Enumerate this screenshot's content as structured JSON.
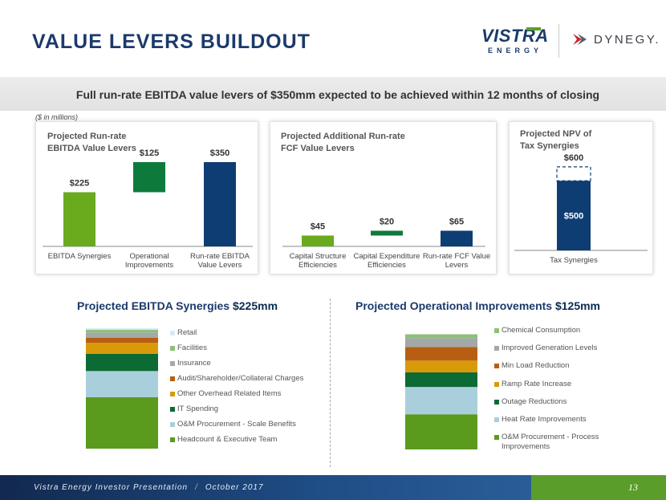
{
  "page": {
    "title": "VALUE LEVERS BUILDOUT",
    "banner": "Full run-rate EBITDA value levers of $350mm expected to be achieved within 12 months of closing",
    "units": "($ in millions)",
    "logos": {
      "vistra_word": "VISTRA",
      "vistra_sub": "ENERGY",
      "dynegy": "DYNEGY."
    },
    "footer": {
      "presentation": "Vistra Energy Investor Presentation",
      "date": "October 2017",
      "page_number": "13"
    },
    "section_titles": {
      "left_label": "Projected EBITDA Synergies ",
      "left_amount": "$225mm",
      "right_label": "Projected Operational Improvements ",
      "right_amount": "$125mm"
    }
  },
  "colors": {
    "light_green": "#6aaa1f",
    "dark_green": "#0d7a3b",
    "navy": "#0d3d73",
    "footer_green": "#5a9d2a"
  },
  "chart_data": [
    {
      "id": "ebitda",
      "type": "waterfall",
      "title_lines": [
        "Projected Run-rate",
        "EBITDA Value Levers"
      ],
      "categories": [
        "EBITDA Synergies",
        "Operational Improvements",
        "Run-rate EBITDA Value Levers"
      ],
      "category_lines": [
        [
          "EBITDA Synergies"
        ],
        [
          "Operational",
          "Improvements"
        ],
        [
          "Run-rate EBITDA",
          "Value Levers"
        ]
      ],
      "values": [
        225,
        125,
        350
      ],
      "labels": [
        "$225",
        "$125",
        "$350"
      ],
      "bases": [
        0,
        225,
        0
      ],
      "colors": [
        "#6aaa1f",
        "#0d7a3b",
        "#0d3d73"
      ],
      "ymax": 420
    },
    {
      "id": "fcf",
      "type": "bar",
      "title_lines": [
        "Projected Additional Run-rate",
        "FCF Value Levers"
      ],
      "categories": [
        "Capital Structure Efficiencies",
        "Capital Expenditure Efficiencies",
        "Run-rate FCF Value Levers"
      ],
      "category_lines": [
        [
          "Capital Structure",
          "Efficiencies"
        ],
        [
          "Capital Expenditure",
          "Efficiencies"
        ],
        [
          "Run-rate FCF Value",
          "Levers"
        ]
      ],
      "values": [
        45,
        20,
        65
      ],
      "labels": [
        "$45",
        "$20",
        "$65"
      ],
      "bases": [
        0,
        45,
        0
      ],
      "colors": [
        "#6aaa1f",
        "#0d7a3b",
        "#0d3d73"
      ],
      "ymax": 420
    },
    {
      "id": "npv",
      "type": "bar",
      "title_lines": [
        "Projected NPV of",
        "Tax Synergies"
      ],
      "categories": [
        "Tax Synergies"
      ],
      "values": [
        500
      ],
      "upside_total": 600,
      "labels": [
        "$500"
      ],
      "upside_label": "$600",
      "colors": [
        "#0d3d73"
      ],
      "ymax": 680
    },
    {
      "id": "synergies",
      "type": "stacked-bar",
      "total": 225,
      "segments": [
        {
          "name": "Headcount & Executive Team",
          "value": 96,
          "color": "#5a9a1c"
        },
        {
          "name": "O&M Procurement - Scale Benefits",
          "value": 49,
          "color": "#a9cfdc"
        },
        {
          "name": "IT Spending",
          "value": 32,
          "color": "#0c6a34"
        },
        {
          "name": "Other Overhead Related Items",
          "value": 21,
          "color": "#d99a0a"
        },
        {
          "name": "Audit/Shareholder/Collateral Charges",
          "value": 9,
          "color": "#b85e12"
        },
        {
          "name": "Insurance",
          "value": 10,
          "color": "#a3a8a9"
        },
        {
          "name": "Facilities",
          "value": 5,
          "color": "#8cc07a"
        },
        {
          "name": "Retail",
          "value": 3,
          "color": "#d9e9f2"
        }
      ],
      "legend_order": [
        "Retail",
        "Facilities",
        "Insurance",
        "Audit/Shareholder/Collateral Charges",
        "Other Overhead Related Items",
        "IT Spending",
        "O&M Procurement - Scale Benefits",
        "Headcount & Executive Team"
      ]
    },
    {
      "id": "operational",
      "type": "stacked-bar",
      "total": 125,
      "segments": [
        {
          "name": "O&M Procurement - Process Improvements",
          "value": 36,
          "color": "#5a9a1c"
        },
        {
          "name": "Heat Rate Improvements",
          "value": 28,
          "color": "#a9cfdc"
        },
        {
          "name": "Outage Reductions",
          "value": 15,
          "color": "#0c6a34"
        },
        {
          "name": "Ramp Rate Increase",
          "value": 12,
          "color": "#d99a0a"
        },
        {
          "name": "Min Load Reduction",
          "value": 14,
          "color": "#b85e12"
        },
        {
          "name": "Improved Generation Levels",
          "value": 9,
          "color": "#a3a8a9"
        },
        {
          "name": "Chemical Consumption",
          "value": 4,
          "color": "#8cc07a"
        }
      ],
      "legend_order": [
        "Chemical Consumption",
        "Improved Generation Levels",
        "Min Load Reduction",
        "Ramp Rate Increase",
        "Outage Reductions",
        "Heat Rate Improvements",
        "O&M Procurement - Process Improvements"
      ]
    }
  ]
}
